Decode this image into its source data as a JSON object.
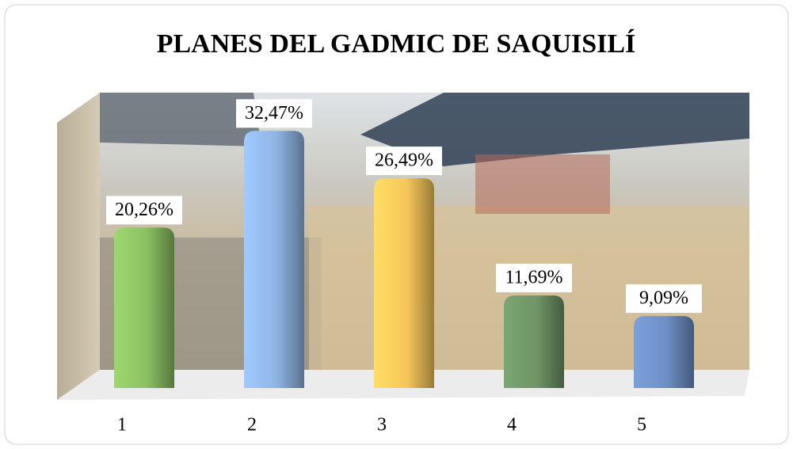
{
  "chart_data": {
    "type": "bar",
    "title": "PLANES DEL GADMIC DE SAQUISILÍ",
    "categories": [
      "1",
      "2",
      "3",
      "4",
      "5"
    ],
    "values": [
      20.26,
      32.47,
      26.49,
      11.69,
      9.09
    ],
    "value_labels": [
      "20,26%",
      "32,47%",
      "26,49%",
      "11,69%",
      "9,09%"
    ],
    "colors": [
      "#8cc063",
      "#8fb4e3",
      "#f5c65a",
      "#6f9466",
      "#6e8fc4"
    ]
  }
}
